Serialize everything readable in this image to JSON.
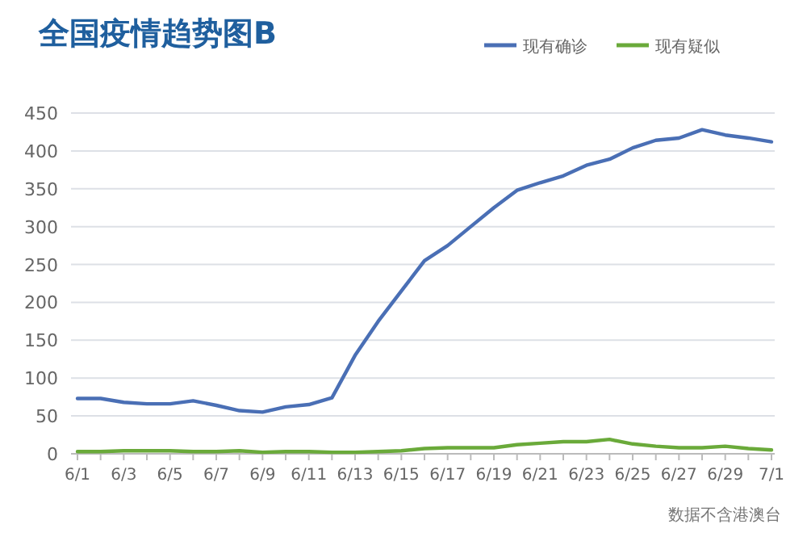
{
  "chart_data": {
    "type": "line",
    "title": "全国疫情趋势图B",
    "categories": [
      "6/1",
      null,
      "6/3",
      null,
      "6/5",
      null,
      "6/7",
      null,
      "6/9",
      null,
      "6/11",
      null,
      "6/13",
      null,
      "6/15",
      null,
      "6/17",
      null,
      "6/19",
      null,
      "6/21",
      null,
      "6/23",
      null,
      "6/25",
      null,
      "6/27",
      null,
      "6/29",
      null,
      "7/1"
    ],
    "series": [
      {
        "name": "现有确诊",
        "color": "#4a6fb5",
        "values": [
          73,
          73,
          68,
          66,
          66,
          70,
          64,
          57,
          55,
          62,
          65,
          74,
          130,
          175,
          215,
          255,
          275,
          300,
          325,
          348,
          358,
          367,
          381,
          389,
          404,
          414,
          417,
          428,
          421,
          417,
          412
        ]
      },
      {
        "name": "现有疑似",
        "color": "#6aaa3a",
        "values": [
          3,
          3,
          4,
          4,
          4,
          3,
          3,
          4,
          2,
          3,
          3,
          2,
          2,
          3,
          4,
          7,
          8,
          8,
          8,
          12,
          14,
          16,
          16,
          19,
          13,
          10,
          8,
          8,
          10,
          7,
          5
        ]
      }
    ],
    "ylim": [
      0,
      450
    ],
    "yticks": [
      0,
      50,
      100,
      150,
      200,
      250,
      300,
      350,
      400,
      450
    ],
    "grid": "y",
    "legend": "top right",
    "marker": "none",
    "line_style": "solid",
    "annotations": [
      "数据不含港澳台"
    ]
  }
}
